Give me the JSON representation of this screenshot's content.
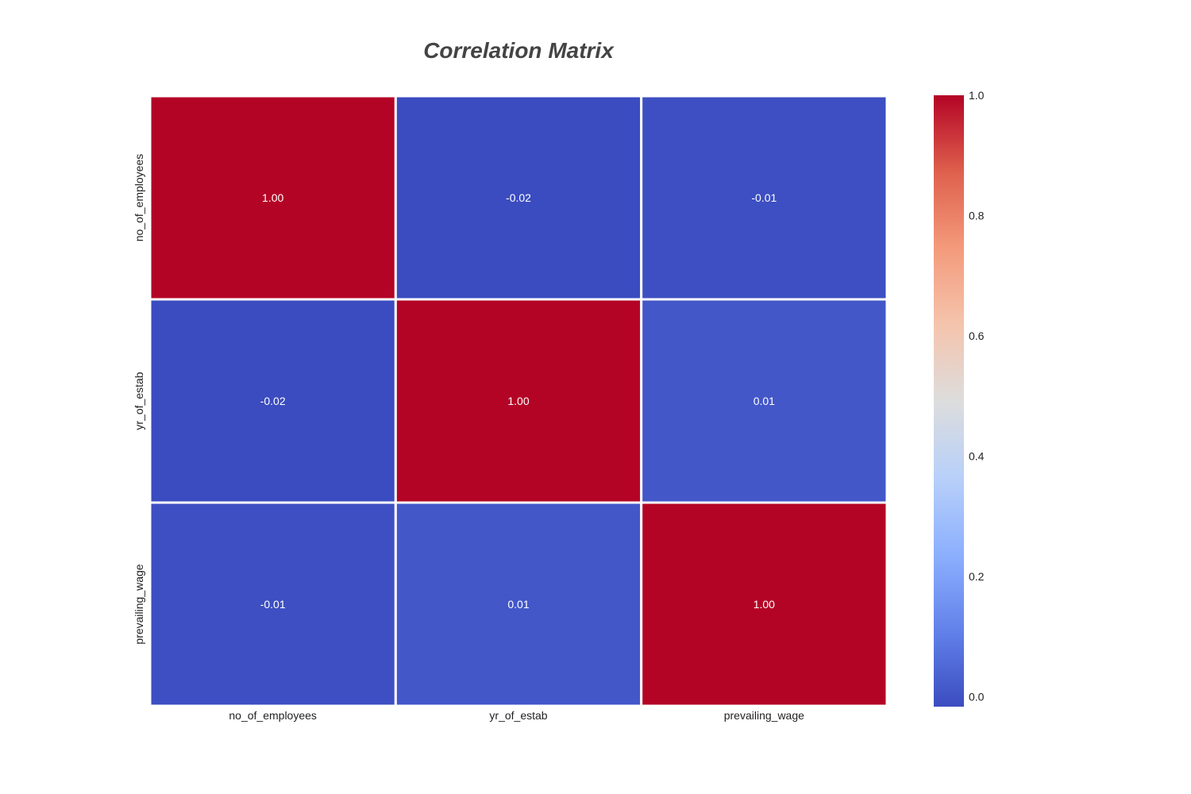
{
  "chart_data": {
    "type": "heatmap",
    "title": "Correlation Matrix",
    "xlabel": "",
    "ylabel": "",
    "x_categories": [
      "no_of_employees",
      "yr_of_estab",
      "prevailing_wage"
    ],
    "y_categories": [
      "no_of_employees",
      "yr_of_estab",
      "prevailing_wage"
    ],
    "values": [
      [
        1.0,
        -0.02,
        -0.01
      ],
      [
        -0.02,
        1.0,
        0.01
      ],
      [
        -0.01,
        0.01,
        1.0
      ]
    ],
    "cell_labels": [
      [
        "1.00",
        "-0.02",
        "-0.01"
      ],
      [
        "-0.02",
        "1.00",
        "0.01"
      ],
      [
        "-0.01",
        "0.01",
        "1.00"
      ]
    ],
    "colormap": "coolwarm",
    "colorbar": {
      "vmin": -0.0165,
      "vmax": 1.0,
      "ticks": [
        0.0,
        0.2,
        0.4,
        0.6,
        0.8,
        1.0
      ],
      "tick_labels": [
        "0.0",
        "0.2",
        "0.4",
        "0.6",
        "0.8",
        "1.0"
      ]
    },
    "colors": {
      "low": "#3b4cc0",
      "mid": "#dddddd",
      "high": "#b40426",
      "cell_text": "#ffffff",
      "title": "#444444",
      "tick_text": "#222222",
      "cell_border": "#ffffff"
    }
  }
}
